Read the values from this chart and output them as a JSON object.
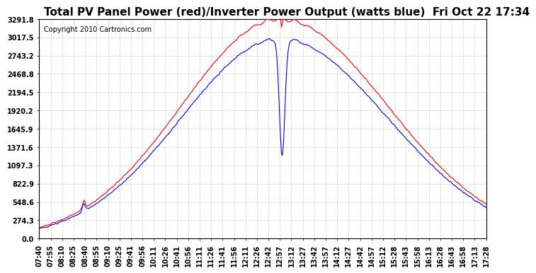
{
  "title": "Total PV Panel Power (red)/Inverter Power Output (watts blue)  Fri Oct 22 17:34",
  "copyright": "Copyright 2010 Cartronics.com",
  "yticks": [
    0.0,
    274.3,
    548.6,
    822.9,
    1097.3,
    1371.6,
    1645.9,
    1920.2,
    2194.5,
    2468.8,
    2743.2,
    3017.5,
    3291.8
  ],
  "ylim": [
    0.0,
    3291.8
  ],
  "red_color": "#ff0000",
  "blue_color": "#0000ff",
  "bg_color": "#ffffff",
  "grid_color": "#cccccc",
  "title_fontsize": 11,
  "copyright_fontsize": 7,
  "tick_fontsize": 7,
  "xtick_labels": [
    "07:40",
    "07:55",
    "08:10",
    "08:25",
    "08:40",
    "08:55",
    "09:10",
    "09:25",
    "09:41",
    "09:56",
    "10:11",
    "10:26",
    "10:41",
    "10:56",
    "11:11",
    "11:26",
    "11:41",
    "11:56",
    "12:11",
    "12:26",
    "12:42",
    "12:57",
    "13:12",
    "13:27",
    "13:42",
    "13:57",
    "14:12",
    "14:27",
    "14:42",
    "14:57",
    "15:12",
    "15:28",
    "15:43",
    "15:58",
    "16:13",
    "16:28",
    "16:43",
    "16:58",
    "17:13",
    "17:28"
  ]
}
